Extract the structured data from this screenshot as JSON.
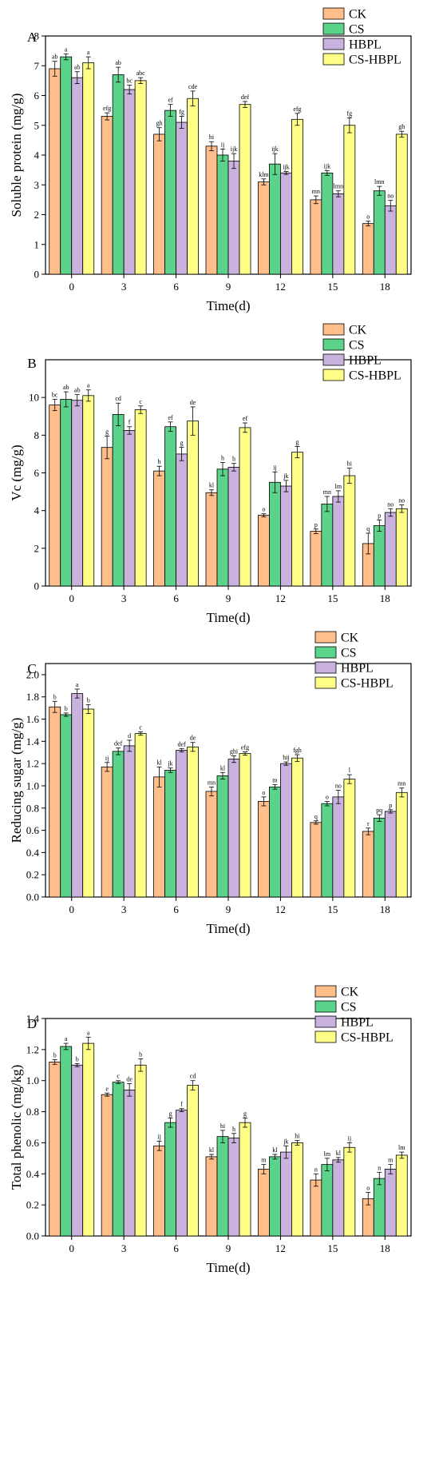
{
  "figure": {
    "colors": {
      "CK": "#FFBE8A",
      "CS": "#5CD38A",
      "HBPL": "#C9B2DD",
      "CS-HBPL": "#FFFF88"
    },
    "legend": [
      "CK",
      "CS",
      "HBPL",
      "CS-HBPL"
    ],
    "xlabel": "Time(d)"
  },
  "chart_data": [
    {
      "panel": "A",
      "type": "bar",
      "title": "",
      "xlabel": "Time(d)",
      "ylabel": "Soluble protein (mg/g)",
      "categories": [
        "0",
        "3",
        "6",
        "9",
        "12",
        "15",
        "18"
      ],
      "ylim": [
        0,
        8
      ],
      "yticks": [
        0,
        1,
        2,
        3,
        4,
        5,
        6,
        7,
        8
      ],
      "legend_position": "top-right",
      "series": [
        {
          "name": "CK",
          "values": [
            6.9,
            5.3,
            4.7,
            4.3,
            3.1,
            2.5,
            1.7
          ],
          "errors": [
            0.25,
            0.12,
            0.22,
            0.15,
            0.1,
            0.13,
            0.08
          ],
          "labels": [
            "ab",
            "efg",
            "gh",
            "hi",
            "klm",
            "mn",
            "o"
          ]
        },
        {
          "name": "CS",
          "values": [
            7.3,
            6.7,
            5.5,
            4.0,
            3.7,
            3.4,
            2.8
          ],
          "errors": [
            0.1,
            0.25,
            0.2,
            0.2,
            0.35,
            0.08,
            0.15
          ],
          "labels": [
            "a",
            "ab",
            "ef",
            "ij",
            "ijk",
            "ijk",
            "lmn"
          ]
        },
        {
          "name": "HBPL",
          "values": [
            6.6,
            6.2,
            5.1,
            3.8,
            3.4,
            2.7,
            2.3
          ],
          "errors": [
            0.2,
            0.15,
            0.2,
            0.25,
            0.05,
            0.1,
            0.18
          ],
          "labels": [
            "ab",
            "bc",
            "fg",
            "ijk",
            "ijk",
            "lmn",
            "no"
          ]
        },
        {
          "name": "CS-HBPL",
          "values": [
            7.1,
            6.5,
            5.9,
            5.7,
            5.2,
            5.0,
            4.7
          ],
          "errors": [
            0.2,
            0.1,
            0.25,
            0.1,
            0.2,
            0.25,
            0.1
          ],
          "labels": [
            "a",
            "abc",
            "cde",
            "def",
            "efg",
            "fg",
            "gh"
          ]
        }
      ]
    },
    {
      "panel": "B",
      "type": "bar",
      "title": "",
      "xlabel": "Time(d)",
      "ylabel": "Vc (mg/g)",
      "categories": [
        "0",
        "3",
        "6",
        "9",
        "12",
        "15",
        "18"
      ],
      "ylim": [
        0,
        12
      ],
      "yticks": [
        0,
        2,
        4,
        6,
        8,
        10
      ],
      "legend_position": "top-right",
      "series": [
        {
          "name": "CK",
          "values": [
            9.6,
            7.35,
            6.1,
            4.95,
            3.75,
            2.9,
            2.25
          ],
          "errors": [
            0.3,
            0.6,
            0.25,
            0.15,
            0.08,
            0.12,
            0.55
          ],
          "labels": [
            "bc",
            "g",
            "h",
            "kl",
            "o",
            "p",
            "q"
          ]
        },
        {
          "name": "CS",
          "values": [
            9.9,
            9.1,
            8.45,
            6.2,
            5.5,
            4.35,
            3.2
          ],
          "errors": [
            0.4,
            0.6,
            0.25,
            0.35,
            0.55,
            0.4,
            0.3
          ],
          "labels": [
            "ab",
            "cd",
            "ef",
            "h",
            "ij",
            "mn",
            "p"
          ]
        },
        {
          "name": "HBPL",
          "values": [
            9.85,
            8.25,
            7.0,
            6.3,
            5.3,
            4.75,
            3.9
          ],
          "errors": [
            0.3,
            0.2,
            0.35,
            0.2,
            0.3,
            0.3,
            0.2
          ],
          "labels": [
            "ab",
            "f",
            "g",
            "h",
            "jk",
            "lm",
            "no"
          ]
        },
        {
          "name": "CS-HBPL",
          "values": [
            10.1,
            9.35,
            8.75,
            8.4,
            7.1,
            5.85,
            4.1
          ],
          "errors": [
            0.3,
            0.2,
            0.75,
            0.25,
            0.3,
            0.4,
            0.2
          ],
          "labels": [
            "a",
            "c",
            "de",
            "ef",
            "g",
            "hi",
            "no"
          ]
        }
      ]
    },
    {
      "panel": "C",
      "type": "bar",
      "title": "",
      "xlabel": "Time(d)",
      "ylabel": "Reducing sugar (mg/g)",
      "categories": [
        "0",
        "3",
        "6",
        "9",
        "12",
        "15",
        "18"
      ],
      "ylim": [
        0,
        2.1
      ],
      "yticks": [
        0.0,
        0.2,
        0.4,
        0.6,
        0.8,
        1.0,
        1.2,
        1.4,
        1.6,
        1.8,
        2.0
      ],
      "legend_position": "top-right",
      "series": [
        {
          "name": "CK",
          "values": [
            1.71,
            1.17,
            1.08,
            0.95,
            0.86,
            0.67,
            0.59
          ],
          "errors": [
            0.05,
            0.04,
            0.09,
            0.04,
            0.04,
            0.015,
            0.03
          ],
          "labels": [
            "b",
            "ij",
            "kl",
            "mn",
            "o",
            "q",
            "r"
          ]
        },
        {
          "name": "CS",
          "values": [
            1.64,
            1.31,
            1.14,
            1.09,
            0.99,
            0.84,
            0.71
          ],
          "errors": [
            0.015,
            0.03,
            0.02,
            0.03,
            0.02,
            0.02,
            0.03
          ],
          "labels": [
            "b",
            "def",
            "jk",
            "kl",
            "m",
            "o",
            "pq"
          ]
        },
        {
          "name": "HBPL",
          "values": [
            1.83,
            1.36,
            1.32,
            1.24,
            1.2,
            0.9,
            0.77
          ],
          "errors": [
            0.04,
            0.05,
            0.015,
            0.03,
            0.015,
            0.06,
            0.015
          ],
          "labels": [
            "a",
            "d",
            "def",
            "ghi",
            "hij",
            "no",
            "p"
          ]
        },
        {
          "name": "CS-HBPL",
          "values": [
            1.69,
            1.47,
            1.35,
            1.29,
            1.25,
            1.06,
            0.94
          ],
          "errors": [
            0.04,
            0.015,
            0.04,
            0.015,
            0.03,
            0.04,
            0.04
          ],
          "labels": [
            "b",
            "c",
            "de",
            "efg",
            "fgh",
            "l",
            "mn"
          ]
        }
      ]
    },
    {
      "panel": "D",
      "type": "bar",
      "title": "",
      "xlabel": "Time(d)",
      "ylabel": "Total phenolic (mg/kg)",
      "categories": [
        "0",
        "3",
        "6",
        "9",
        "12",
        "15",
        "18"
      ],
      "ylim": [
        0,
        1.4
      ],
      "yticks": [
        0.0,
        0.2,
        0.4,
        0.6,
        0.8,
        1.0,
        1.2,
        1.4
      ],
      "legend_position": "top-right",
      "series": [
        {
          "name": "CK",
          "values": [
            1.12,
            0.91,
            0.58,
            0.51,
            0.43,
            0.36,
            0.24
          ],
          "errors": [
            0.015,
            0.01,
            0.03,
            0.015,
            0.03,
            0.04,
            0.04
          ],
          "labels": [
            "b",
            "e",
            "ij",
            "kl",
            "m",
            "n",
            "o"
          ]
        },
        {
          "name": "CS",
          "values": [
            1.22,
            0.99,
            0.73,
            0.64,
            0.51,
            0.46,
            0.37
          ],
          "errors": [
            0.02,
            0.01,
            0.03,
            0.04,
            0.015,
            0.04,
            0.04
          ],
          "labels": [
            "a",
            "c",
            "g",
            "hi",
            "kl",
            "lm",
            "n"
          ]
        },
        {
          "name": "HBPL",
          "values": [
            1.1,
            0.94,
            0.81,
            0.63,
            0.54,
            0.49,
            0.43
          ],
          "errors": [
            0.01,
            0.04,
            0.01,
            0.03,
            0.04,
            0.015,
            0.03
          ],
          "labels": [
            "b",
            "de",
            "f",
            "h",
            "jk",
            "kl",
            "m"
          ]
        },
        {
          "name": "CS-HBPL",
          "values": [
            1.24,
            1.1,
            0.97,
            0.73,
            0.6,
            0.57,
            0.52
          ],
          "errors": [
            0.04,
            0.04,
            0.03,
            0.03,
            0.015,
            0.03,
            0.02
          ],
          "labels": [
            "a",
            "b",
            "cd",
            "g",
            "hi",
            "ij",
            "lm"
          ]
        }
      ]
    }
  ]
}
